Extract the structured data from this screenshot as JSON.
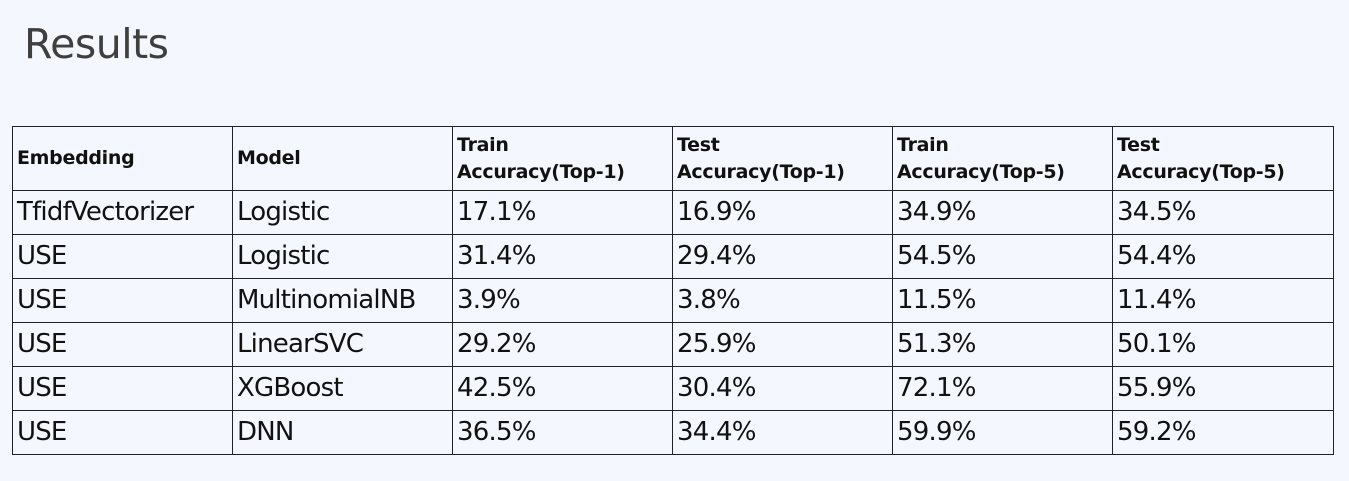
{
  "title": "Results",
  "table": {
    "headers": [
      [
        "Embedding"
      ],
      [
        "Model"
      ],
      [
        "Train",
        "Accuracy(Top-1)"
      ],
      [
        "Test",
        "Accuracy(Top-1)"
      ],
      [
        "Train",
        "Accuracy(Top-5)"
      ],
      [
        "Test",
        "Accuracy(Top-5)"
      ]
    ],
    "rows": [
      [
        "TfidfVectorizer",
        "Logistic",
        "17.1%",
        "16.9%",
        "34.9%",
        "34.5%"
      ],
      [
        "USE",
        "Logistic",
        "31.4%",
        "29.4%",
        "54.5%",
        "54.4%"
      ],
      [
        "USE",
        "MultinomialNB",
        "3.9%",
        "3.8%",
        "11.5%",
        "11.4%"
      ],
      [
        "USE",
        "LinearSVC",
        "29.2%",
        "25.9%",
        "51.3%",
        "50.1%"
      ],
      [
        "USE",
        "XGBoost",
        "42.5%",
        "30.4%",
        "72.1%",
        "55.9%"
      ],
      [
        "USE",
        "DNN",
        "36.5%",
        "34.4%",
        "59.9%",
        "59.2%"
      ]
    ]
  }
}
